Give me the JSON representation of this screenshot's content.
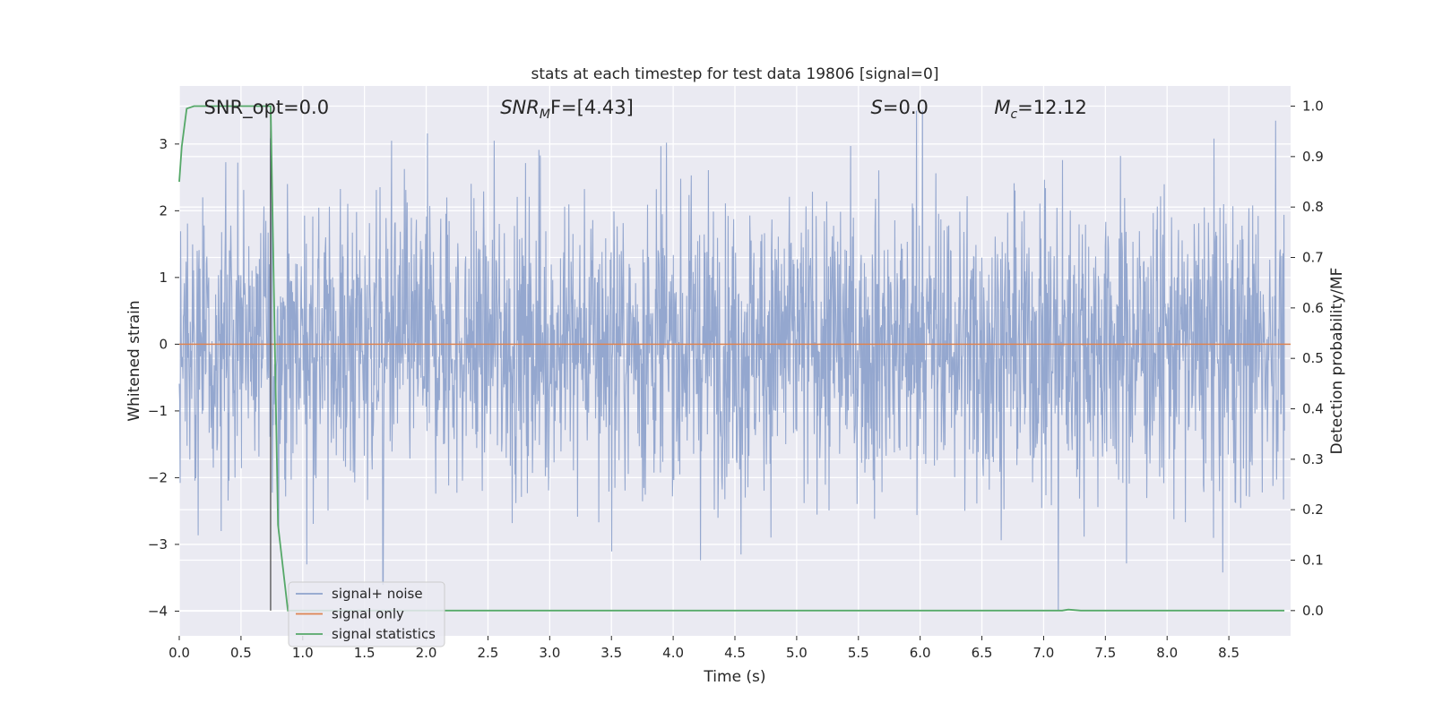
{
  "chart_data": {
    "type": "line",
    "title": "stats at each timestep for test data 19806 [signal=0]",
    "xlabel": "Time (s)",
    "ylabel": "Whitened strain",
    "ylabel_right": "Detection probability/MF",
    "xlim": [
      0.0,
      9.0
    ],
    "ylim": [
      -4.37,
      3.87
    ],
    "ylim_right": [
      -0.05,
      1.04
    ],
    "x_ticks": [
      "0.0",
      "0.5",
      "1.0",
      "1.5",
      "2.0",
      "2.5",
      "3.0",
      "3.5",
      "4.0",
      "4.5",
      "5.0",
      "5.5",
      "6.0",
      "6.5",
      "7.0",
      "7.5",
      "8.0",
      "8.5"
    ],
    "y_ticks": [
      "−4",
      "−3",
      "−2",
      "−1",
      "0",
      "1",
      "2",
      "3"
    ],
    "y_ticks_right": [
      "0.0",
      "0.1",
      "0.2",
      "0.3",
      "0.4",
      "0.5",
      "0.6",
      "0.7",
      "0.8",
      "0.9",
      "1.0"
    ],
    "grid": true,
    "legend_position": "lower-left",
    "annotations": [
      {
        "text": "SNR_opt=0.0",
        "x": 0.2,
        "y": 3.55
      },
      {
        "text": "SNR_MF=[4.43]",
        "main": "SNR",
        "sub": "M",
        "after": "F=[4.43]",
        "x": 2.6,
        "y": 3.55
      },
      {
        "text": "S=0.0",
        "main": "S",
        "after": "=0.0",
        "x": 5.6,
        "y": 3.55
      },
      {
        "text": "M_c=12.12",
        "main": "M",
        "sub": "c",
        "after": "=12.12",
        "x": 6.6,
        "y": 3.55
      }
    ],
    "series": [
      {
        "name": "signal+ noise",
        "color": "#8fa3cc",
        "description": "whitened noise, roughly Gaussian, sigma≈1, band reaches ±3.5",
        "peak_points": [
          {
            "x": 0.74,
            "y": 3.08
          },
          {
            "x": 1.65,
            "y": -3.6
          },
          {
            "x": 1.72,
            "y": 3.05
          },
          {
            "x": 2.55,
            "y": 3.05
          },
          {
            "x": 4.55,
            "y": -3.15
          },
          {
            "x": 5.97,
            "y": 3.5
          },
          {
            "x": 6.02,
            "y": 3.5
          },
          {
            "x": 7.12,
            "y": -4.0
          },
          {
            "x": 8.45,
            "y": -3.42
          },
          {
            "x": 8.88,
            "y": 3.35
          }
        ]
      },
      {
        "name": "signal only",
        "color": "#dd8452",
        "x": [
          0.0,
          9.0
        ],
        "y": [
          0.0,
          0.0
        ]
      },
      {
        "name": "signal statistics",
        "color": "#55a868",
        "axis": "right",
        "x": [
          0.0,
          0.02,
          0.06,
          0.12,
          0.3,
          0.5,
          0.72,
          0.73,
          0.74,
          0.8,
          0.88,
          0.95,
          2.0,
          5.0,
          7.0,
          7.15,
          7.2,
          7.3,
          8.0,
          8.95
        ],
        "y": [
          0.85,
          0.92,
          0.995,
          1.0,
          1.0,
          1.0,
          1.0,
          1.0,
          1.0,
          0.17,
          0.0,
          0.0,
          0.0,
          0.0,
          0.0,
          0.0,
          0.002,
          0.0,
          0.0,
          0.0
        ]
      }
    ],
    "vertical_line": {
      "x": 0.74,
      "color": "#444444"
    }
  }
}
